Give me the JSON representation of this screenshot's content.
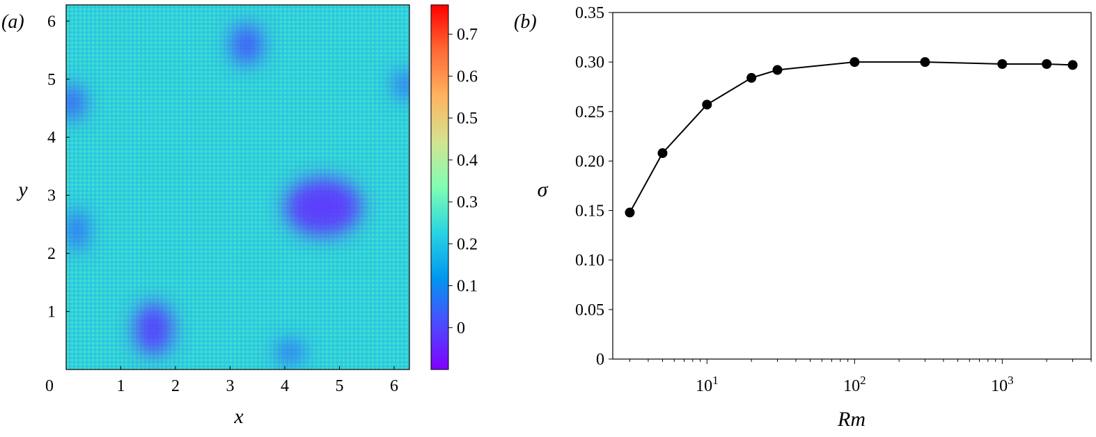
{
  "panel_a": {
    "label": "(a)",
    "xlabel": "x",
    "ylabel": "y",
    "x_ticks": [
      "0",
      "1",
      "2",
      "3",
      "4",
      "5",
      "6"
    ],
    "y_ticks": [
      "1",
      "2",
      "3",
      "4",
      "5",
      "6"
    ],
    "colorbar_ticks": [
      "0",
      "0.1",
      "0.2",
      "0.3",
      "0.4",
      "0.5",
      "0.6",
      "0.7"
    ]
  },
  "panel_b": {
    "label": "(b)",
    "xlabel": "Rm",
    "ylabel": "σ",
    "y_ticks": [
      "0",
      "0.05",
      "0.10",
      "0.15",
      "0.20",
      "0.25",
      "0.30",
      "0.35"
    ],
    "x_ticks": [
      {
        "base": "10",
        "exp": "1"
      },
      {
        "base": "10",
        "exp": "2"
      },
      {
        "base": "10",
        "exp": "3"
      }
    ]
  },
  "chart_data": [
    {
      "type": "heatmap",
      "title": "",
      "xlabel": "x",
      "ylabel": "y",
      "xlim": [
        0,
        6.28
      ],
      "ylim": [
        0,
        6.28
      ],
      "colormap": "rainbow",
      "color_range": [
        -0.1,
        0.77
      ],
      "colorbar_ticks": [
        0,
        0.1,
        0.2,
        0.3,
        0.4,
        0.5,
        0.6,
        0.7
      ],
      "features": [
        {
          "kind": "low-value vortex",
          "center": [
            4.7,
            2.8
          ],
          "radii": [
            1.4,
            1.0
          ],
          "value": -0.03
        },
        {
          "kind": "low-value region",
          "center": [
            1.6,
            0.7
          ],
          "radii": [
            0.7,
            0.9
          ],
          "value": -0.02
        },
        {
          "kind": "low-value vortex",
          "center": [
            3.3,
            5.6
          ],
          "radii": [
            0.6,
            0.7
          ],
          "value": 0.02
        },
        {
          "kind": "low-value vortex",
          "center": [
            0.1,
            4.6
          ],
          "radii": [
            0.5,
            0.6
          ],
          "value": 0.03
        },
        {
          "kind": "low-value vortex",
          "center": [
            6.2,
            4.9
          ],
          "radii": [
            0.4,
            0.5
          ],
          "value": 0.05
        },
        {
          "kind": "low-value vortex",
          "center": [
            0.2,
            2.4
          ],
          "radii": [
            0.4,
            0.7
          ],
          "value": 0.05
        },
        {
          "kind": "low-value region",
          "center": [
            4.1,
            0.3
          ],
          "radii": [
            0.5,
            0.4
          ],
          "value": 0.05
        }
      ],
      "background_value": 0.25
    },
    {
      "type": "line",
      "title": "",
      "xlabel": "Rm",
      "ylabel": "σ",
      "xscale": "log",
      "xlim": [
        2.3,
        4000
      ],
      "ylim": [
        0,
        0.35
      ],
      "grid": false,
      "series": [
        {
          "x": [
            3,
            5,
            10,
            20,
            30,
            100,
            300,
            1000,
            2000,
            3000
          ],
          "values": [
            0.148,
            0.208,
            0.257,
            0.284,
            0.292,
            0.3,
            0.3,
            0.298,
            0.298,
            0.297
          ],
          "color": "#000000",
          "marker": "circle"
        }
      ]
    }
  ]
}
